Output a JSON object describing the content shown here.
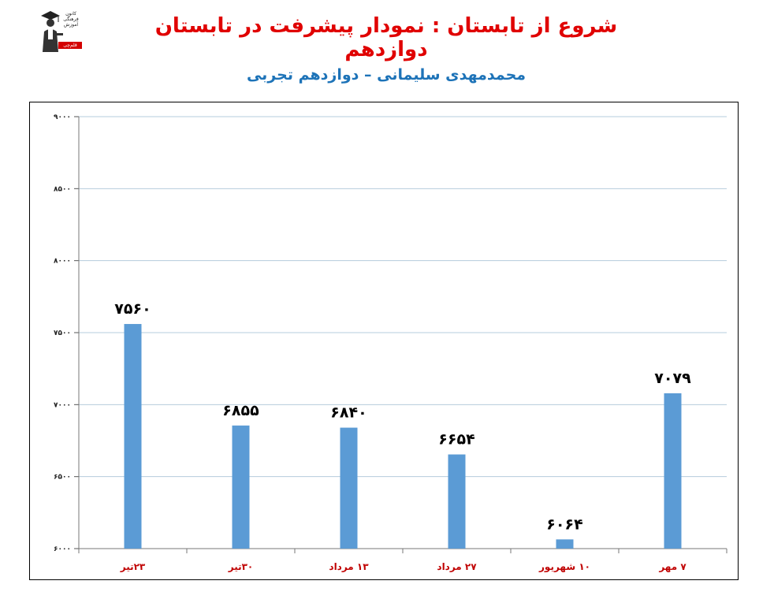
{
  "header": {
    "title": "شروع از تابستان : نمودار پیشرفت در تابستان دوازدهم",
    "subtitle": "محمدمهدی سلیمانی – دوازدهم تجربی",
    "logo_lines": [
      "کانون",
      "فرهنگی",
      "آموزش"
    ],
    "logo_badge": "قلم‌چی"
  },
  "colors": {
    "title": "#e00000",
    "subtitle": "#1d73b8",
    "bar": "#5b9bd5",
    "category_label": "#c00000",
    "gridline": "#b4ccdc"
  },
  "chart_data": {
    "type": "bar",
    "categories": [
      "۲۳تیر",
      "۳۰تیر",
      "۱۳ مرداد",
      "۲۷ مرداد",
      "۱۰ شهریور",
      "۷ مهر"
    ],
    "values": [
      7560,
      6855,
      6840,
      6654,
      6064,
      7079
    ],
    "data_labels": [
      "۷۵۶۰",
      "۶۸۵۵",
      "۶۸۴۰",
      "۶۶۵۴",
      "۶۰۶۴",
      "۷۰۷۹"
    ],
    "y_ticks": [
      6000,
      6500,
      7000,
      7500,
      8000,
      8500,
      9000
    ],
    "y_tick_labels": [
      "۶۰۰۰",
      "۶۵۰۰",
      "۷۰۰۰",
      "۷۵۰۰",
      "۸۰۰۰",
      "۸۵۰۰",
      "۹۰۰۰"
    ],
    "ylim": [
      6000,
      9000
    ],
    "grid": true,
    "legend": "none"
  }
}
